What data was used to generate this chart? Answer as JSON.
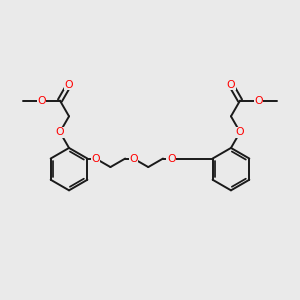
{
  "background_color": "#eaeaea",
  "bond_color": "#1a1a1a",
  "oxygen_color": "#ff0000",
  "line_width": 1.4,
  "figsize": [
    3.0,
    3.0
  ],
  "dpi": 100,
  "xlim": [
    0,
    10
  ],
  "ylim": [
    0,
    10
  ],
  "ring_r": 0.72,
  "font_size": 7.8
}
